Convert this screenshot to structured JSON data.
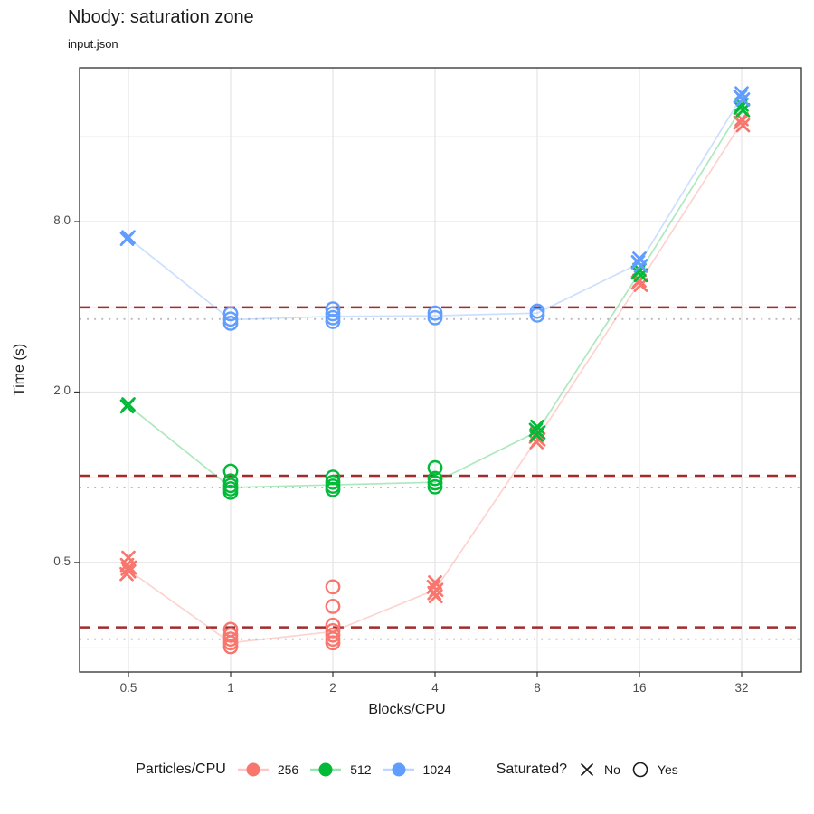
{
  "header": {
    "title": "Nbody: saturation zone",
    "subtitle": "input.json"
  },
  "axes": {
    "x_label": "Blocks/CPU",
    "y_label": "Time (s)",
    "x_tick_labels": [
      "0.5",
      "1",
      "2",
      "4",
      "8",
      "16",
      "32"
    ],
    "y_tick_labels": [
      "8.0",
      "2.0",
      "0.5"
    ]
  },
  "legend": {
    "series_title": "Particles/CPU",
    "items": [
      {
        "label": "256",
        "color": "#F8766D"
      },
      {
        "label": "512",
        "color": "#00BA38"
      },
      {
        "label": "1024",
        "color": "#619CFF"
      }
    ],
    "shape_title": "Saturated?",
    "shapes": [
      {
        "shape": "x-mark",
        "label": "No"
      },
      {
        "shape": "open-circle",
        "label": "Yes"
      }
    ]
  },
  "colors": {
    "threshold_dashed": "#A02D2D",
    "baseline_dotted": "#B8B8B8",
    "grid_major": "#E4E4E4",
    "grid_minor": "#F1F1F1",
    "panel_border": "#2E2E2E",
    "tick_mark": "#333333",
    "tick_text": "#4d4d4d",
    "text": "#1a1a1a"
  },
  "chart_data": {
    "type": "scatter",
    "title": "Nbody: saturation zone",
    "subtitle": "input.json",
    "xlabel": "Blocks/CPU",
    "ylabel": "Time (s)",
    "x_scale": "log2",
    "y_scale": "log10",
    "x_ticks": [
      0.5,
      1,
      2,
      4,
      8,
      16,
      32
    ],
    "y_ticks": [
      8.0,
      2.0,
      0.5
    ],
    "y_minor_gridlines": [
      0.25,
      1,
      4,
      16
    ],
    "ylim": [
      0.2,
      28
    ],
    "legend_note": "shape X = not saturated, shape O = saturated",
    "saturation_threshold_lines": {
      "style": "dashed",
      "color": "#A02D2D",
      "values": [
        3.98,
        1.012,
        0.295
      ]
    },
    "baseline_lines": {
      "style": "dotted",
      "color": "#B8B8B8",
      "values": [
        3.62,
        0.92,
        0.268
      ]
    },
    "series": [
      {
        "name": "256",
        "color": "#F8766D",
        "baseline": 0.268,
        "threshold": 0.295,
        "median_line": [
          0.47,
          0.26,
          0.285,
          0.4,
          1.37,
          4.87,
          17.9
        ],
        "clusters": [
          {
            "x": 0.5,
            "saturated": false,
            "values": [
              0.52,
              0.49,
              0.48,
              0.475,
              0.465,
              0.455
            ]
          },
          {
            "x": 1,
            "saturated": true,
            "values": [
              0.29,
              0.277,
              0.268,
              0.26,
              0.252
            ]
          },
          {
            "x": 2,
            "saturated": true,
            "values": [
              0.41,
              0.35,
              0.3,
              0.287,
              0.277,
              0.268,
              0.26
            ]
          },
          {
            "x": 4,
            "saturated": false,
            "values": [
              0.425,
              0.41,
              0.4,
              0.39,
              0.38
            ]
          },
          {
            "x": 8,
            "saturated": false,
            "values": [
              1.43,
              1.39,
              1.36,
              1.33
            ]
          },
          {
            "x": 16,
            "saturated": false,
            "values": [
              4.95,
              4.87,
              4.78
            ]
          },
          {
            "x": 32,
            "saturated": false,
            "values": [
              18.4,
              17.9,
              17.5
            ]
          }
        ]
      },
      {
        "name": "512",
        "color": "#00BA38",
        "baseline": 0.92,
        "threshold": 1.012,
        "median_line": [
          1.79,
          0.92,
          0.94,
          0.96,
          1.45,
          5.28,
          20.2
        ],
        "clusters": [
          {
            "x": 0.5,
            "saturated": false,
            "values": [
              1.81,
              1.78
            ]
          },
          {
            "x": 1,
            "saturated": true,
            "values": [
              1.05,
              0.97,
              0.935,
              0.91,
              0.885
            ]
          },
          {
            "x": 2,
            "saturated": true,
            "values": [
              1.0,
              0.96,
              0.93,
              0.905
            ]
          },
          {
            "x": 4,
            "saturated": true,
            "values": [
              1.08,
              0.99,
              0.955,
              0.925
            ]
          },
          {
            "x": 8,
            "saturated": false,
            "values": [
              1.51,
              1.47,
              1.44,
              1.41
            ]
          },
          {
            "x": 16,
            "saturated": false,
            "values": [
              5.4,
              5.28,
              5.17
            ]
          },
          {
            "x": 32,
            "saturated": false,
            "values": [
              20.7,
              20.2,
              19.8
            ]
          }
        ]
      },
      {
        "name": "1024",
        "color": "#619CFF",
        "baseline": 3.62,
        "threshold": 3.98,
        "median_line": [
          7.0,
          3.6,
          3.7,
          3.72,
          3.8,
          5.7,
          22.1
        ],
        "clusters": [
          {
            "x": 0.5,
            "saturated": false,
            "values": [
              7.05,
              6.95
            ]
          },
          {
            "x": 1,
            "saturated": true,
            "values": [
              3.78,
              3.62,
              3.5
            ]
          },
          {
            "x": 2,
            "saturated": true,
            "values": [
              3.93,
              3.78,
              3.66,
              3.55
            ]
          },
          {
            "x": 4,
            "saturated": true,
            "values": [
              3.8,
              3.66
            ]
          },
          {
            "x": 8,
            "saturated": true,
            "values": [
              3.86,
              3.74
            ]
          },
          {
            "x": 16,
            "saturated": false,
            "values": [
              5.92,
              5.75,
              5.58
            ]
          },
          {
            "x": 32,
            "saturated": false,
            "values": [
              22.7,
              22.1,
              21.6
            ]
          }
        ]
      }
    ]
  }
}
